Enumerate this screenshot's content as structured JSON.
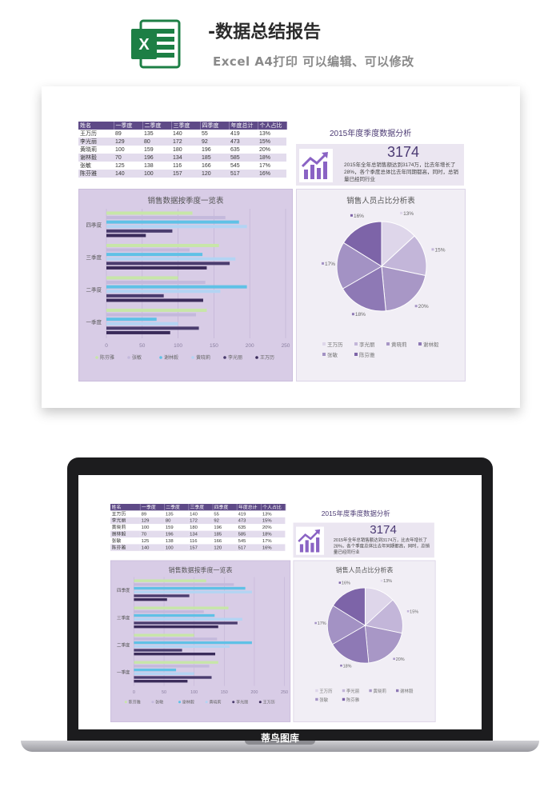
{
  "header": {
    "title": "-数据总结报告",
    "subtitle": "Excel A4打印 可以编辑、可以修改",
    "app_icon": "excel-icon",
    "app_icon_letter": "X"
  },
  "table": {
    "columns": [
      "姓名",
      "一季度",
      "二季度",
      "三季度",
      "四季度",
      "年度总计",
      "个人占比"
    ],
    "rows": [
      [
        "王万历",
        "89",
        "135",
        "140",
        "55",
        "419",
        "13%"
      ],
      [
        "李光丽",
        "129",
        "80",
        "172",
        "92",
        "473",
        "15%"
      ],
      [
        "黄晓莉",
        "100",
        "159",
        "180",
        "196",
        "635",
        "20%"
      ],
      [
        "谢林毅",
        "70",
        "196",
        "134",
        "185",
        "585",
        "18%"
      ],
      [
        "张敏",
        "125",
        "138",
        "116",
        "166",
        "545",
        "17%"
      ],
      [
        "陈芬雅",
        "140",
        "100",
        "157",
        "120",
        "517",
        "16%"
      ]
    ]
  },
  "analysis": {
    "title": "2015年度季度数据分析",
    "number": "3174",
    "text": "2015年全年总销售额达到3174万，比去年增长了28%，各个季度总体比去年同期都高，同时，总销量已经同行业",
    "icon": "trend-chart-icon"
  },
  "chart_data": [
    {
      "type": "bar",
      "title": "销售数据按季度一览表",
      "categories": [
        "一季度",
        "二季度",
        "三季度",
        "四季度"
      ],
      "series": [
        {
          "name": "陈芬雅",
          "values": [
            140,
            100,
            157,
            120
          ]
        },
        {
          "name": "张敏",
          "values": [
            125,
            138,
            116,
            166
          ]
        },
        {
          "name": "谢林毅",
          "values": [
            70,
            196,
            134,
            185
          ]
        },
        {
          "name": "黄晓莉",
          "values": [
            100,
            159,
            180,
            196
          ]
        },
        {
          "name": "李光丽",
          "values": [
            129,
            80,
            172,
            92
          ]
        },
        {
          "name": "王万历",
          "values": [
            89,
            135,
            140,
            55
          ]
        }
      ],
      "xlim": [
        0,
        250
      ],
      "xticks": [
        "0",
        "50",
        "100",
        "150",
        "200",
        "250"
      ],
      "colors": [
        "#c7e6a8",
        "#c4b9dc",
        "#5fc1e6",
        "#b3d4f3",
        "#4a3c6e",
        "#3a2b5a"
      ],
      "orientation": "horizontal",
      "legend": "bottom",
      "grid": true
    },
    {
      "type": "pie",
      "title": "销售人员占比分析表",
      "labels": [
        "王万历",
        "李光丽",
        "黄晓莉",
        "谢林毅",
        "张敏",
        "陈芬雅"
      ],
      "values": [
        13,
        15,
        20,
        18,
        17,
        16
      ],
      "value_labels": [
        "13%",
        "15%",
        "20%",
        "18%",
        "17%",
        "16%"
      ],
      "colors": [
        "#ded6ea",
        "#c3b6d9",
        "#a897c6",
        "#8e79b5",
        "#a392c4",
        "#7d64a8"
      ],
      "legend": "bottom"
    }
  ],
  "laptop": {
    "watermark": "蒂鸟图库"
  }
}
